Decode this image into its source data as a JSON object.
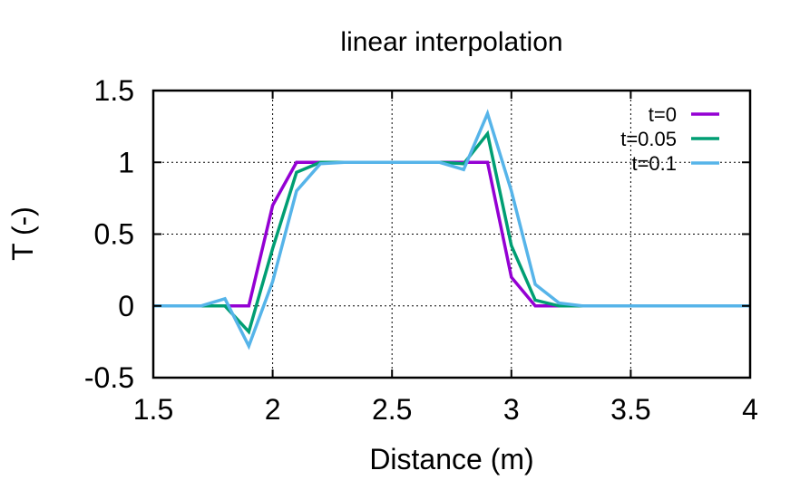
{
  "chart_data": {
    "type": "line",
    "title": "linear interpolation",
    "xlabel": "Distance (m)",
    "ylabel": "T (-)",
    "xlim": [
      1.5,
      4
    ],
    "ylim": [
      -0.5,
      1.5
    ],
    "xticks": [
      1.5,
      2,
      2.5,
      3,
      3.5,
      4
    ],
    "yticks": [
      -0.5,
      0,
      0.5,
      1,
      1.5
    ],
    "xtick_labels": [
      "1.5",
      "2",
      "2.5",
      "3",
      "3.5",
      "4"
    ],
    "ytick_labels": [
      "-0.5",
      "0",
      "0.5",
      "1",
      "1.5"
    ],
    "grid": true,
    "legend_position": "top-right",
    "series": [
      {
        "name": "t=0",
        "color": "#9400d3",
        "x": [
          1.5,
          1.9,
          2.0,
          2.1,
          2.2,
          2.3,
          2.4,
          2.5,
          2.6,
          2.7,
          2.8,
          2.9,
          3.0,
          3.1,
          3.2,
          3.3,
          4.0
        ],
        "y": [
          0,
          0,
          0.7,
          1,
          1,
          1,
          1,
          1,
          1,
          1,
          1,
          1,
          0.2,
          0,
          0,
          0,
          0
        ]
      },
      {
        "name": "t=0.05",
        "color": "#009e73",
        "x": [
          1.5,
          1.8,
          1.9,
          2.0,
          2.1,
          2.2,
          2.3,
          2.4,
          2.5,
          2.6,
          2.7,
          2.8,
          2.9,
          3.0,
          3.1,
          3.2,
          3.3,
          4.0
        ],
        "y": [
          0,
          0,
          -0.18,
          0.4,
          0.93,
          1.0,
          1.0,
          1,
          1,
          1,
          1,
          0.99,
          1.2,
          0.42,
          0.04,
          0,
          0,
          0
        ]
      },
      {
        "name": "t=0.1",
        "color": "#56b4e9",
        "x": [
          1.5,
          1.7,
          1.8,
          1.9,
          2.0,
          2.1,
          2.2,
          2.3,
          2.4,
          2.5,
          2.6,
          2.7,
          2.8,
          2.9,
          3.0,
          3.1,
          3.2,
          3.3,
          4.0
        ],
        "y": [
          0,
          0,
          0.05,
          -0.28,
          0.17,
          0.8,
          0.99,
          1.0,
          1,
          1,
          1,
          1,
          0.95,
          1.34,
          0.8,
          0.15,
          0.02,
          0,
          0
        ]
      }
    ]
  }
}
